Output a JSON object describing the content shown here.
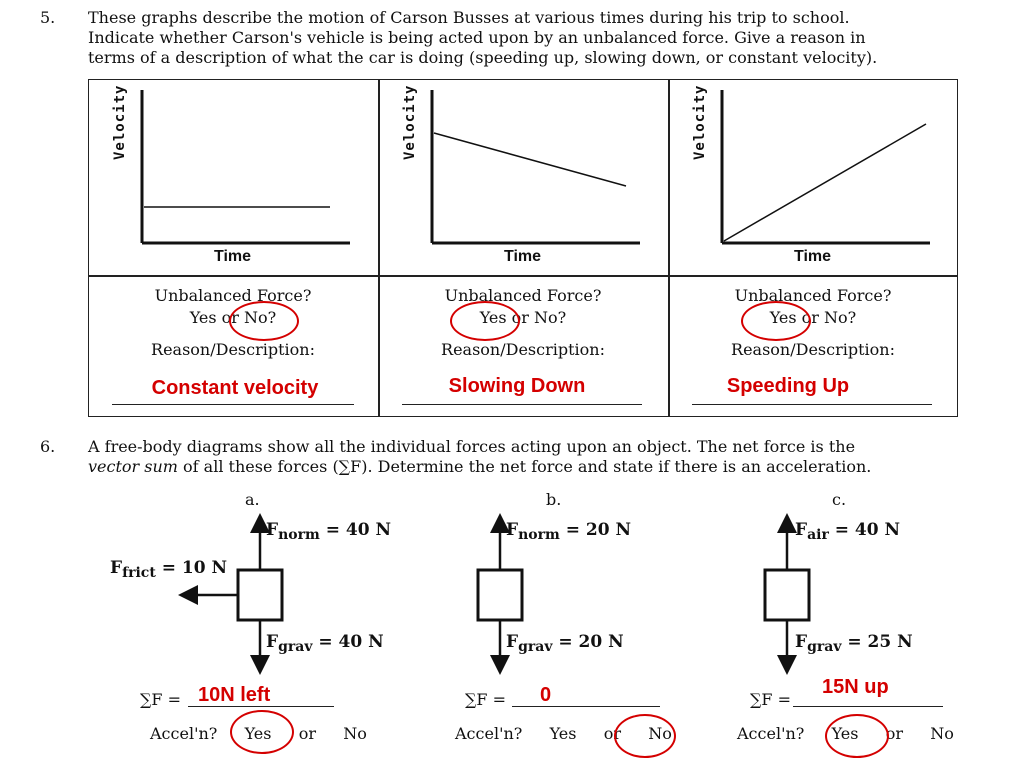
{
  "q5": {
    "number": "5.",
    "text_line1": "These graphs describe the motion of Carson Busses at various times during his trip to school.",
    "text_line2": "Indicate whether Carson's vehicle is being acted upon by an unbalanced force.  Give a reason in",
    "text_line3": "terms of a description of what the car is doing (speeding up, slowing down, or constant velocity).",
    "graphs": [
      {
        "ylabel": "Velocity",
        "xlabel": "Time",
        "trend": "constant"
      },
      {
        "ylabel": "Velocity",
        "xlabel": "Time",
        "trend": "decreasing"
      },
      {
        "ylabel": "Velocity",
        "xlabel": "Time",
        "trend": "increasing"
      }
    ],
    "question_line1": "Unbalanced Force?",
    "question_line2": "Yes or No?",
    "reason_label": "Reason/Description:",
    "answers": [
      {
        "circled": "No",
        "reason": "Constant velocity"
      },
      {
        "circled": "Yes",
        "reason": "Slowing Down"
      },
      {
        "circled": "Yes",
        "reason": "Speeding Up"
      }
    ]
  },
  "q6": {
    "number": "6.",
    "text_line1": "A free-body diagrams show all the individual forces acting upon an object.  The net force is the",
    "text_line2_italic": "vector sum",
    "text_line2_rest": " of all these forces (∑F).  Determine the net force and state if there is an acceleration.",
    "diagrams": [
      {
        "letter": "a.",
        "top_label": "F",
        "top_sub": "norm",
        "top_value": "= 40 N",
        "bottom_label": "F",
        "bottom_sub": "grav",
        "bottom_value": "= 40 N",
        "left_label": "F",
        "left_sub": "frict",
        "left_value": "= 10 N",
        "sum_prefix": "∑F = ",
        "sum_answer": "10N left",
        "accel_prefix": "Accel'n?",
        "yes": "Yes",
        "or": "or",
        "no": "No",
        "circled": "Yes"
      },
      {
        "letter": "b.",
        "top_label": "F",
        "top_sub": "norm",
        "top_value": "= 20 N",
        "bottom_label": "F",
        "bottom_sub": "grav",
        "bottom_value": "= 20 N",
        "sum_prefix": "∑F = ",
        "sum_answer": "0",
        "accel_prefix": "Accel'n?",
        "yes": "Yes",
        "or": "or",
        "no": "No",
        "circled": "No"
      },
      {
        "letter": "c.",
        "top_label": "F",
        "top_sub": "air",
        "top_value": "= 40 N",
        "bottom_label": "F",
        "bottom_sub": "grav",
        "bottom_value": "= 25 N",
        "sum_prefix": "∑F = ",
        "sum_answer": "15N up",
        "accel_prefix": "Accel'n?",
        "yes": "Yes",
        "or": "or",
        "no": "No",
        "circled": "Yes"
      }
    ]
  },
  "colors": {
    "annotation_red": "#d40000",
    "ink": "#111111"
  }
}
